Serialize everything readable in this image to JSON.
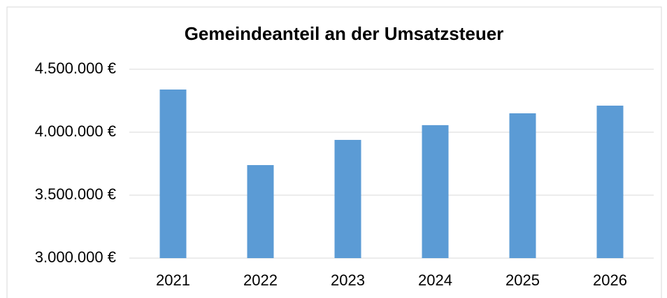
{
  "chart_data": {
    "type": "bar",
    "title": "Gemeindeanteil an der Umsatzsteuer",
    "categories": [
      "2021",
      "2022",
      "2023",
      "2024",
      "2025",
      "2026"
    ],
    "values": [
      4339000,
      3739000,
      3939000,
      4056000,
      4150000,
      4211000
    ],
    "color": "#5b9bd5",
    "ylim": [
      3000000,
      4500000
    ],
    "yticks": [
      {
        "value": 3000000,
        "label": "3.000.000 €"
      },
      {
        "value": 3500000,
        "label": "3.500.000 €"
      },
      {
        "value": 4000000,
        "label": "4.000.000 €"
      },
      {
        "value": 4500000,
        "label": "4.500.000 €"
      }
    ],
    "grid": true
  }
}
